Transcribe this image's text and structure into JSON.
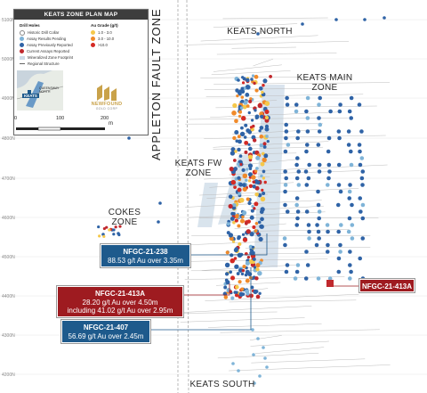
{
  "legend": {
    "title": "KEATS ZONE PLAN MAP",
    "drill_holes_heading": "Drill Holes",
    "grade_heading": "Au Grade (g/t)",
    "drill_items": [
      {
        "label": "Historic Drill Collar",
        "color": "#ffffff"
      },
      {
        "label": "Assay Results Pending",
        "color": "#7fb4d8"
      },
      {
        "label": "Assay Previously Reported",
        "color": "#2f63a6"
      },
      {
        "label": "Current Assays Reported",
        "color": "#c0282d"
      },
      {
        "label": "Mineralized Zone Footprint",
        "color": "#cddbe8"
      },
      {
        "label": "Regional Structure",
        "color": "#666666"
      }
    ],
    "grade_items": [
      {
        "label": "1.0 - 3.0",
        "color": "#f5c84a"
      },
      {
        "label": "3.0 - 10.0",
        "color": "#f08a2a"
      },
      {
        "label": ">10.0",
        "color": "#d42a24"
      }
    ],
    "inset_labels": [
      "KEATS",
      "QUEENSWAY NORTH"
    ],
    "brand": "NEWFOUND",
    "brand_sub": "GOLD CORP",
    "scale_ticks": [
      "0",
      "100",
      "200"
    ],
    "scale_unit": "m"
  },
  "y_axis_labels": [
    "5100N",
    "5000N",
    "4900N",
    "4800N",
    "4700N",
    "4600N",
    "4500N",
    "4400N",
    "4300N",
    "4200N"
  ],
  "zones": {
    "fault": "APPLETON FAULT ZONE",
    "north": "KEATS NORTH",
    "main_1": "KEATS MAIN",
    "main_2": "ZONE",
    "fw_1": "KEATS FW",
    "fw_2": "ZONE",
    "cokes_1": "COKES",
    "cokes_2": "ZONE",
    "south": "KEATS SOUTH"
  },
  "callouts": {
    "c238": {
      "hole": "NFGC-21-238",
      "line1": "88.53 g/t Au over 3.35m",
      "color": "#1e5a8c"
    },
    "c413": {
      "hole": "NFGC-21-413A",
      "line1": "28.20 g/t Au over 4.50m",
      "line2": "including 41.02 g/t Au over 2.95m",
      "color": "#9e1b20"
    },
    "c407": {
      "hole": "NFGC-21-407",
      "line1": "56.69 g/t Au over 2.45m",
      "color": "#1e5a8c"
    },
    "c413tag": {
      "hole": "NFGC-21-413A",
      "color": "#9e1b20"
    }
  }
}
